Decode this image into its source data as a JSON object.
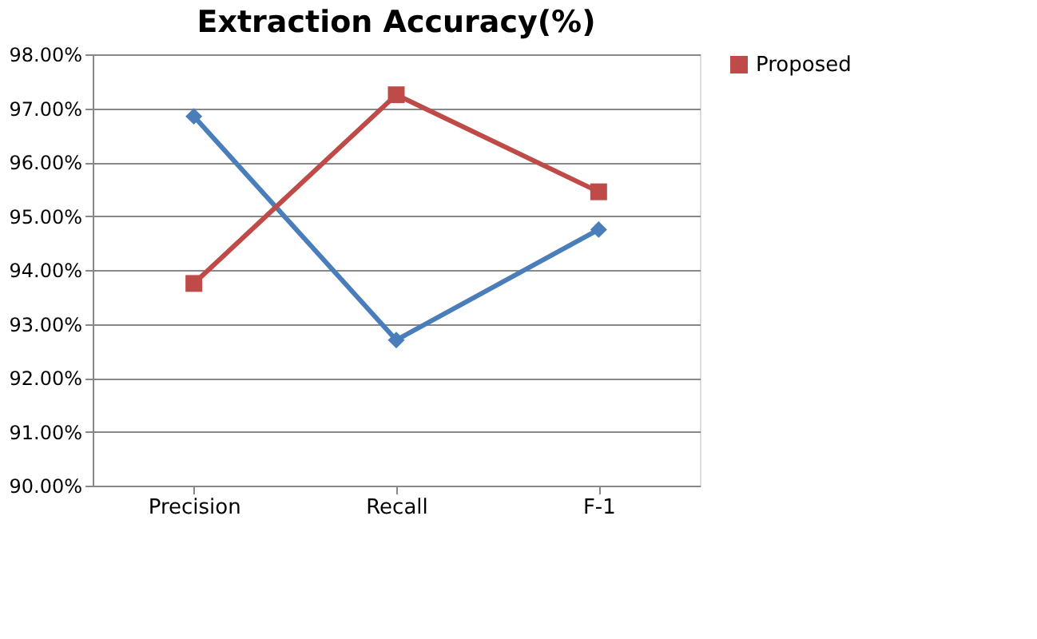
{
  "chart_data": {
    "type": "line",
    "title": "Extraction Accuracy(%)",
    "categories": [
      "Precision",
      "Recall",
      "F-1"
    ],
    "series": [
      {
        "color": "#4a7ebb",
        "marker": "diamond",
        "values": [
          96.85,
          92.7,
          94.75
        ]
      },
      {
        "name": "Proposed",
        "color": "#be4b48",
        "marker": "square",
        "values": [
          93.75,
          97.25,
          95.45
        ]
      }
    ],
    "ylim": [
      90,
      98
    ],
    "yticks": [
      {
        "value": 90,
        "label": "90.00%"
      },
      {
        "value": 91,
        "label": "91.00%"
      },
      {
        "value": 92,
        "label": "92.00%"
      },
      {
        "value": 93,
        "label": "93.00%"
      },
      {
        "value": 94,
        "label": "94.00%"
      },
      {
        "value": 95,
        "label": "95.00%"
      },
      {
        "value": 96,
        "label": "96.00%"
      },
      {
        "value": 97,
        "label": "97.00%"
      },
      {
        "value": 98,
        "label": "98.00%"
      }
    ],
    "grid": "y",
    "legend": "right",
    "line_style": "solid"
  }
}
